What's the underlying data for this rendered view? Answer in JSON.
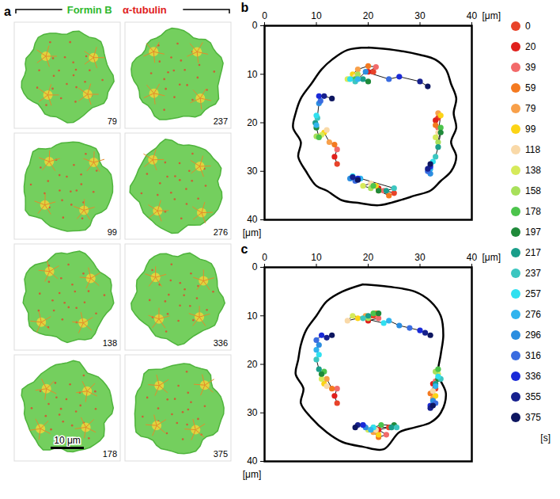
{
  "panel_a": {
    "label": "a",
    "channels": [
      {
        "name": "Formin B",
        "color": "#2fb82f"
      },
      {
        "name": "α-tubulin",
        "color": "#e02020"
      }
    ],
    "frames": [
      [
        79,
        99,
        138,
        178
      ],
      [
        237,
        276,
        336,
        375
      ]
    ],
    "scale_bar": {
      "label": "10 μm",
      "frame": 178
    }
  },
  "time_scale": {
    "unit": "[s]",
    "values": [
      0,
      20,
      39,
      59,
      79,
      99,
      118,
      138,
      158,
      178,
      197,
      217,
      237,
      257,
      276,
      296,
      316,
      336,
      355,
      375
    ],
    "colors": [
      "#e8432a",
      "#e0201c",
      "#f26a6a",
      "#f47a20",
      "#f8a04a",
      "#fcd416",
      "#f9d9a8",
      "#d6ea5a",
      "#a8e05a",
      "#4cc44c",
      "#1f8a3a",
      "#1a9e8a",
      "#3cc6c0",
      "#30e0f0",
      "#30b4ee",
      "#2b8ee0",
      "#3a6ce0",
      "#1a2ad8",
      "#16208e",
      "#0d1660"
    ]
  },
  "chart_data": [
    {
      "type": "scatter",
      "panel": "b",
      "x_label": "[μm]",
      "y_label": "[μm]",
      "xlim": [
        0,
        40
      ],
      "ylim": [
        0,
        40
      ],
      "xticks": [
        0,
        10,
        20,
        30,
        40
      ],
      "yticks": [
        0,
        10,
        20,
        30,
        40
      ],
      "outline": {
        "x": [
          20,
          25,
          30,
          33,
          35,
          36,
          37,
          36.5,
          37,
          36,
          37,
          36,
          34,
          32,
          29,
          26,
          22,
          18,
          15,
          12,
          10,
          8,
          6.5,
          7,
          5.5,
          6,
          7,
          9,
          11,
          13,
          16,
          20
        ],
        "y": [
          4.5,
          5,
          6,
          7,
          9,
          12,
          15,
          18,
          21,
          24,
          27,
          30,
          32,
          34,
          35,
          36,
          37,
          36.5,
          36,
          34,
          33,
          30,
          27,
          24,
          21,
          18,
          15,
          12,
          9,
          7,
          5,
          4.5
        ]
      },
      "series": [
        {
          "x": [
            21,
            20,
            21.5,
            20,
            18,
            17,
            17.5,
            16,
            18,
            17.5,
            20,
            19,
            17.5,
            16.5,
            18,
            19.5,
            24,
            26,
            30,
            31.5
          ],
          "y": [
            9.5,
            9.5,
            8.5,
            8.3,
            9,
            10,
            10.5,
            11,
            10,
            11,
            11.5,
            11,
            11.5,
            11,
            11,
            9.5,
            11,
            10.5,
            11.5,
            12.5
          ]
        },
        {
          "x": [
            14,
            13.5,
            14,
            13.5,
            12.5,
            11.5,
            12,
            11,
            10,
            10.5,
            10,
            9.8,
            10.2,
            10,
            10,
            10.5,
            10.8,
            10.5,
            11.5,
            13
          ],
          "y": [
            28.5,
            27,
            25.5,
            24.5,
            24,
            22,
            21.5,
            22.5,
            22.8,
            23,
            21,
            20,
            19,
            18.5,
            20.5,
            16,
            15.5,
            14.5,
            14.5,
            15
          ]
        },
        {
          "x": [
            33.5,
            33,
            33.5,
            33,
            33.5,
            34,
            33.5,
            33,
            33.5,
            34,
            34,
            33.5,
            33,
            32.5,
            32,
            32,
            31.5,
            32,
            31.5,
            32
          ],
          "y": [
            19,
            19.5,
            21,
            20.5,
            18,
            18.5,
            22,
            23,
            24,
            21,
            22,
            25,
            27,
            28,
            29.5,
            30.5,
            30,
            29,
            29.5,
            28.5
          ]
        },
        {
          "x": [
            25,
            22,
            23,
            24,
            22,
            21.5,
            20.5,
            19,
            20.5,
            21,
            22,
            23.5,
            25,
            17,
            18.5,
            16.5,
            17.5,
            18,
            17,
            18
          ],
          "y": [
            34.5,
            33.5,
            34,
            35,
            34,
            33,
            32.5,
            33,
            33.5,
            33,
            34,
            34,
            33.5,
            31,
            31.5,
            31.5,
            32,
            31.5,
            31.2,
            31.8
          ]
        }
      ]
    },
    {
      "type": "scatter",
      "panel": "c",
      "x_label": "[μm]",
      "y_label": "[μm]",
      "xlim": [
        0,
        40
      ],
      "ylim": [
        0,
        40
      ],
      "xticks": [
        0,
        10,
        20,
        30,
        40
      ],
      "yticks": [
        0,
        10,
        20,
        30,
        40
      ],
      "outline": {
        "x": [
          19,
          24,
          29,
          32,
          34,
          34.5,
          34,
          33.5,
          35,
          34,
          32,
          29,
          26,
          23,
          19,
          15,
          12,
          9,
          7,
          7.5,
          6,
          6.5,
          7,
          8,
          10,
          12,
          15,
          19
        ],
        "y": [
          3.5,
          4,
          5,
          7,
          10,
          14,
          18,
          22,
          26,
          30,
          32,
          33,
          34,
          37.5,
          37,
          36,
          34,
          31,
          28,
          25,
          22,
          19,
          16,
          13,
          10,
          7,
          5,
          3.5
        ]
      },
      "series": [
        {
          "x": [
            21,
            20,
            22,
            21.5,
            19.5,
            18,
            16,
            17,
            20,
            21,
            22,
            20,
            19,
            23,
            24,
            26,
            28,
            30,
            31,
            32
          ],
          "y": [
            10,
            11,
            10.5,
            9.5,
            10,
            10.5,
            11,
            10,
            10.5,
            9.5,
            9.5,
            10,
            10.5,
            11.5,
            11,
            12,
            12.5,
            13,
            13.5,
            14
          ]
        },
        {
          "x": [
            14,
            13.5,
            14,
            13,
            12,
            11.5,
            12,
            11,
            11,
            11.5,
            11,
            10.5,
            10,
            10.5,
            10,
            10.5,
            10,
            11,
            12,
            13
          ],
          "y": [
            28,
            26.5,
            25,
            25,
            23,
            24,
            24.5,
            23,
            22,
            21.5,
            22,
            21,
            19,
            18,
            17,
            16,
            15,
            14,
            14.5,
            14
          ]
        },
        {
          "x": [
            33,
            32.5,
            33,
            32,
            32.5,
            33,
            32.5,
            33.5,
            33,
            33.5,
            33.5,
            33,
            34,
            33.5,
            33,
            32.5,
            33,
            32,
            32,
            32.5
          ],
          "y": [
            25,
            24,
            23.5,
            26,
            27,
            26.5,
            25.5,
            22,
            21.5,
            21,
            23,
            24,
            23,
            22.5,
            24.5,
            27.5,
            28,
            28.5,
            29,
            28.5
          ]
        },
        {
          "x": [
            24,
            22,
            23.5,
            22,
            21,
            22,
            21.5,
            20,
            21,
            22.5,
            25,
            24.5,
            25.5,
            21,
            20.5,
            19.5,
            19,
            19,
            18,
            17.5
          ],
          "y": [
            33,
            33.5,
            34.5,
            35,
            34,
            34.5,
            33.5,
            33.5,
            33,
            32.5,
            32.5,
            33,
            33,
            33,
            33.5,
            33,
            32.5,
            32.5,
            32.5,
            33
          ]
        }
      ]
    }
  ]
}
